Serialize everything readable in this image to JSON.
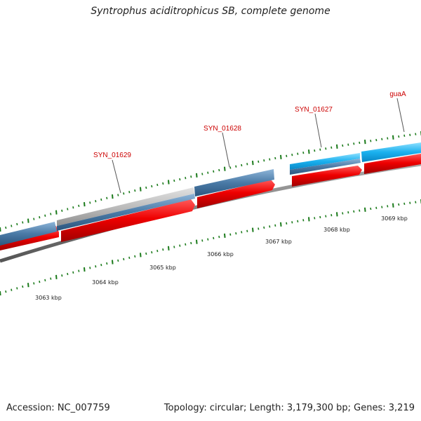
{
  "title": "Syntrophus aciditrophicus SB, complete genome",
  "footer": {
    "accession": "Accession: NC_007759",
    "stats": "Topology: circular; Length: 3,179,300 bp; Genes: 3,219"
  },
  "genes": [
    {
      "name": "SYN_01629"
    },
    {
      "name": "SYN_01628"
    },
    {
      "name": "SYN_01627"
    },
    {
      "name": "guaA"
    }
  ],
  "scale_labels": [
    "3063 kbp",
    "3064 kbp",
    "3065 kbp",
    "3066 kbp",
    "3067 kbp",
    "3068 kbp",
    "3069 kbp"
  ],
  "colors": {
    "gene_label": "#cc0000",
    "forward_track": "#e00000",
    "blue_track": "#4a7aa6",
    "cyan_track": "#1ab0ee",
    "gray_track": "#b8b8b8",
    "backbone": "#777777",
    "tick": "#1a7a1a"
  }
}
